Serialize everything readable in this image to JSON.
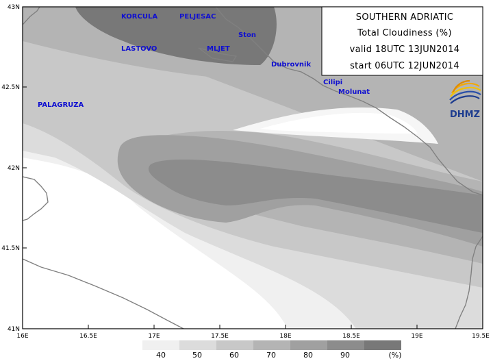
{
  "info": {
    "title": "SOUTHERN ADRIATIC",
    "variable": "Total Cloudiness (%)",
    "valid": "valid 18UTC 13JUN2014",
    "start": "start 06UTC 12JUN2014"
  },
  "logo": {
    "text": "DHMZ"
  },
  "axes": {
    "lat_ticks": [
      "43N",
      "42.5N",
      "42N",
      "41.5N",
      "41N"
    ],
    "lon_ticks": [
      "16E",
      "16.5E",
      "17E",
      "17.5E",
      "18E",
      "18.5E",
      "19E",
      "19.5E"
    ]
  },
  "places": [
    {
      "name": "KORCULA",
      "key": "korcula"
    },
    {
      "name": "PELJESAC",
      "key": "peljesac"
    },
    {
      "name": "Ston",
      "key": "ston"
    },
    {
      "name": "LASTOVO",
      "key": "lastovo"
    },
    {
      "name": "MLJET",
      "key": "mljet"
    },
    {
      "name": "Dubrovnik",
      "key": "dubrovnik"
    },
    {
      "name": "Cilipi",
      "key": "cilipi"
    },
    {
      "name": "Molunat",
      "key": "molunat"
    },
    {
      "name": "PALAGRUZA",
      "key": "palagruza"
    }
  ],
  "legend": {
    "levels": [
      "40",
      "50",
      "60",
      "70",
      "80",
      "90"
    ],
    "unit": "(%)",
    "colors": [
      "#f0f0f0",
      "#dcdcdc",
      "#c8c8c8",
      "#b4b4b4",
      "#a0a0a0",
      "#8c8c8c",
      "#787878"
    ]
  },
  "colors": {
    "coast": "#808080",
    "place_label": "#1010d0",
    "frame": "#000000"
  }
}
